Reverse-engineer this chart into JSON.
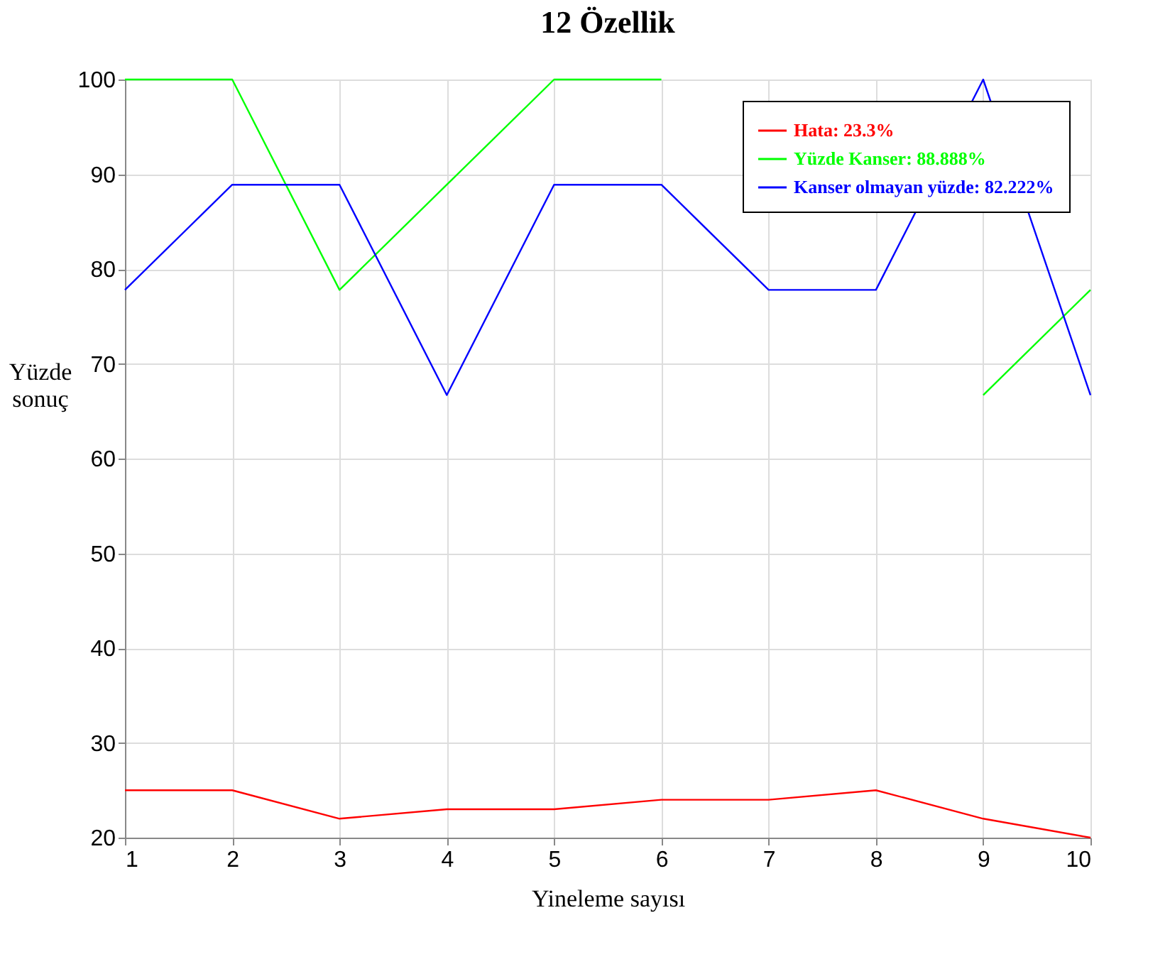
{
  "chart_data": {
    "type": "line",
    "title": "12  Özellik",
    "xlabel": "Yineleme sayısı",
    "ylabel": "Yüzde sonuç",
    "x": [
      1,
      2,
      3,
      4,
      5,
      6,
      7,
      8,
      9,
      10
    ],
    "series": [
      {
        "name": "Hata: 23.3%",
        "color": "#ff0000",
        "values": [
          25,
          25,
          22,
          23,
          23,
          24,
          24,
          25,
          22,
          20
        ]
      },
      {
        "name": "Yüzde Kanser: 88.888%",
        "color": "#00ff00",
        "values": [
          100,
          100,
          77.8,
          88.9,
          100,
          100,
          null,
          null,
          66.7,
          77.8
        ]
      },
      {
        "name": "Kanser olmayan yüzde: 82.222%",
        "color": "#0000ff",
        "values": [
          77.8,
          88.9,
          88.9,
          66.7,
          88.9,
          88.9,
          77.8,
          77.8,
          100,
          66.7
        ]
      }
    ],
    "xlim": [
      1,
      10
    ],
    "xticks": [
      1,
      2,
      3,
      4,
      5,
      6,
      7,
      8,
      9,
      10
    ],
    "ylim": [
      20,
      100
    ],
    "yticks": [
      20,
      30,
      40,
      50,
      60,
      70,
      80,
      90,
      100
    ],
    "grid": true,
    "legend": "top right",
    "marker": "none",
    "line_style": "solid"
  }
}
